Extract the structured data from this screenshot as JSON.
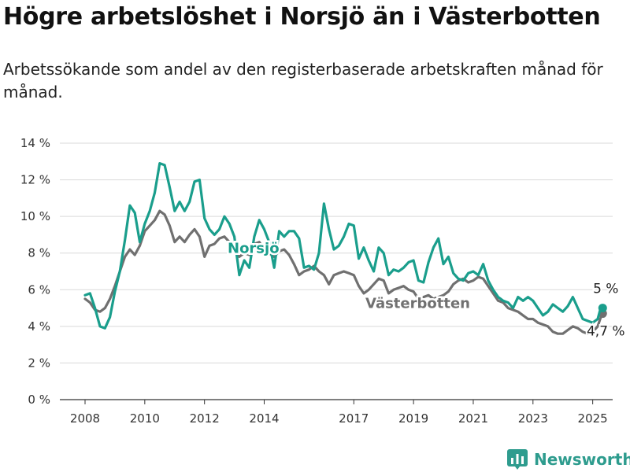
{
  "header": {
    "title": "Högre arbetslöshet i Norsjö än i Västerbotten",
    "subtitle": "Arbetssökande som andel av den registerbaserade arbetskraften månad för månad."
  },
  "brand": {
    "name": "Newsworthy",
    "icon": "bar-chart-logo-icon",
    "color": "#2e9c8e"
  },
  "chart_data": {
    "type": "line",
    "title": "Högre arbetslöshet i Norsjö än i Västerbotten",
    "subtitle": "Arbetssökande som andel av den registerbaserade arbetskraften månad för månad.",
    "xlabel": "",
    "ylabel": "",
    "x_ticks": [
      "2008",
      "2010",
      "2012",
      "2014",
      "2017",
      "2019",
      "2021",
      "2023",
      "2025"
    ],
    "y_ticks": [
      "0 %",
      "2 %",
      "4 %",
      "6 %",
      "8 %",
      "10 %",
      "12 %",
      "14 %"
    ],
    "ylim": [
      0,
      14
    ],
    "xlim": [
      "2007-07",
      "2025-12"
    ],
    "grid": "horizontal",
    "legend": "direct labels on lines",
    "series": [
      {
        "name": "Norsjö",
        "color": "#1a9e8c",
        "end_label": "5 %",
        "points": [
          [
            "2008-01",
            5.7
          ],
          [
            "2008-03",
            5.8
          ],
          [
            "2008-05",
            5.0
          ],
          [
            "2008-07",
            4.0
          ],
          [
            "2008-09",
            3.9
          ],
          [
            "2008-11",
            4.5
          ],
          [
            "2009-01",
            5.9
          ],
          [
            "2009-03",
            7.0
          ],
          [
            "2009-05",
            8.7
          ],
          [
            "2009-07",
            10.6
          ],
          [
            "2009-09",
            10.2
          ],
          [
            "2009-11",
            8.6
          ],
          [
            "2010-01",
            9.6
          ],
          [
            "2010-03",
            10.3
          ],
          [
            "2010-05",
            11.3
          ],
          [
            "2010-07",
            12.9
          ],
          [
            "2010-09",
            12.8
          ],
          [
            "2010-11",
            11.6
          ],
          [
            "2011-01",
            10.3
          ],
          [
            "2011-03",
            10.8
          ],
          [
            "2011-05",
            10.3
          ],
          [
            "2011-07",
            10.8
          ],
          [
            "2011-09",
            11.9
          ],
          [
            "2011-11",
            12.0
          ],
          [
            "2012-01",
            9.9
          ],
          [
            "2012-03",
            9.3
          ],
          [
            "2012-05",
            9.0
          ],
          [
            "2012-07",
            9.3
          ],
          [
            "2012-09",
            10.0
          ],
          [
            "2012-11",
            9.6
          ],
          [
            "2013-01",
            8.9
          ],
          [
            "2013-03",
            6.8
          ],
          [
            "2013-05",
            7.6
          ],
          [
            "2013-07",
            7.2
          ],
          [
            "2013-09",
            8.9
          ],
          [
            "2013-11",
            9.8
          ],
          [
            "2014-01",
            9.3
          ],
          [
            "2014-03",
            8.6
          ],
          [
            "2014-05",
            7.2
          ],
          [
            "2014-07",
            9.2
          ],
          [
            "2014-09",
            8.9
          ],
          [
            "2014-11",
            9.2
          ],
          [
            "2015-01",
            9.2
          ],
          [
            "2015-03",
            8.8
          ],
          [
            "2015-05",
            7.2
          ],
          [
            "2015-07",
            7.3
          ],
          [
            "2015-09",
            7.1
          ],
          [
            "2015-11",
            8.0
          ],
          [
            "2016-01",
            10.7
          ],
          [
            "2016-03",
            9.3
          ],
          [
            "2016-05",
            8.2
          ],
          [
            "2016-07",
            8.4
          ],
          [
            "2016-09",
            8.9
          ],
          [
            "2016-11",
            9.6
          ],
          [
            "2017-01",
            9.5
          ],
          [
            "2017-03",
            7.7
          ],
          [
            "2017-05",
            8.3
          ],
          [
            "2017-07",
            7.6
          ],
          [
            "2017-09",
            7.0
          ],
          [
            "2017-11",
            8.3
          ],
          [
            "2018-01",
            8.0
          ],
          [
            "2018-03",
            6.8
          ],
          [
            "2018-05",
            7.1
          ],
          [
            "2018-07",
            7.0
          ],
          [
            "2018-09",
            7.2
          ],
          [
            "2018-11",
            7.5
          ],
          [
            "2019-01",
            7.6
          ],
          [
            "2019-03",
            6.5
          ],
          [
            "2019-05",
            6.4
          ],
          [
            "2019-07",
            7.5
          ],
          [
            "2019-09",
            8.3
          ],
          [
            "2019-11",
            8.8
          ],
          [
            "2020-01",
            7.4
          ],
          [
            "2020-03",
            7.8
          ],
          [
            "2020-05",
            6.9
          ],
          [
            "2020-07",
            6.6
          ],
          [
            "2020-09",
            6.5
          ],
          [
            "2020-11",
            6.9
          ],
          [
            "2021-01",
            7.0
          ],
          [
            "2021-03",
            6.8
          ],
          [
            "2021-05",
            7.4
          ],
          [
            "2021-07",
            6.5
          ],
          [
            "2021-09",
            6.0
          ],
          [
            "2021-11",
            5.6
          ],
          [
            "2022-01",
            5.4
          ],
          [
            "2022-03",
            5.3
          ],
          [
            "2022-05",
            5.0
          ],
          [
            "2022-07",
            5.6
          ],
          [
            "2022-09",
            5.4
          ],
          [
            "2022-11",
            5.6
          ],
          [
            "2023-01",
            5.4
          ],
          [
            "2023-03",
            5.0
          ],
          [
            "2023-05",
            4.6
          ],
          [
            "2023-07",
            4.8
          ],
          [
            "2023-09",
            5.2
          ],
          [
            "2023-11",
            5.0
          ],
          [
            "2024-01",
            4.8
          ],
          [
            "2024-03",
            5.1
          ],
          [
            "2024-05",
            5.6
          ],
          [
            "2024-07",
            5.0
          ],
          [
            "2024-09",
            4.4
          ],
          [
            "2024-11",
            4.3
          ],
          [
            "2025-01",
            4.2
          ],
          [
            "2025-03",
            4.4
          ],
          [
            "2025-04",
            4.9
          ],
          [
            "2025-05",
            5.0
          ]
        ]
      },
      {
        "name": "Västerbotten",
        "color": "#707070",
        "end_label": "4,7 %",
        "points": [
          [
            "2008-01",
            5.5
          ],
          [
            "2008-03",
            5.3
          ],
          [
            "2008-05",
            4.9
          ],
          [
            "2008-07",
            4.8
          ],
          [
            "2008-09",
            5.0
          ],
          [
            "2008-11",
            5.5
          ],
          [
            "2009-01",
            6.2
          ],
          [
            "2009-03",
            7.0
          ],
          [
            "2009-05",
            7.8
          ],
          [
            "2009-07",
            8.2
          ],
          [
            "2009-09",
            7.9
          ],
          [
            "2009-11",
            8.4
          ],
          [
            "2010-01",
            9.2
          ],
          [
            "2010-03",
            9.5
          ],
          [
            "2010-05",
            9.8
          ],
          [
            "2010-07",
            10.3
          ],
          [
            "2010-09",
            10.1
          ],
          [
            "2010-11",
            9.5
          ],
          [
            "2011-01",
            8.6
          ],
          [
            "2011-03",
            8.9
          ],
          [
            "2011-05",
            8.6
          ],
          [
            "2011-07",
            9.0
          ],
          [
            "2011-09",
            9.3
          ],
          [
            "2011-11",
            8.9
          ],
          [
            "2012-01",
            7.8
          ],
          [
            "2012-03",
            8.4
          ],
          [
            "2012-05",
            8.5
          ],
          [
            "2012-07",
            8.8
          ],
          [
            "2012-09",
            8.9
          ],
          [
            "2012-11",
            8.6
          ],
          [
            "2013-01",
            8.1
          ],
          [
            "2013-03",
            7.8
          ],
          [
            "2013-05",
            8.0
          ],
          [
            "2013-07",
            7.9
          ],
          [
            "2013-09",
            8.5
          ],
          [
            "2013-11",
            8.6
          ],
          [
            "2014-01",
            8.2
          ],
          [
            "2014-03",
            8.0
          ],
          [
            "2014-05",
            7.8
          ],
          [
            "2014-07",
            8.1
          ],
          [
            "2014-09",
            8.2
          ],
          [
            "2014-11",
            7.9
          ],
          [
            "2015-01",
            7.4
          ],
          [
            "2015-03",
            6.8
          ],
          [
            "2015-05",
            7.0
          ],
          [
            "2015-07",
            7.1
          ],
          [
            "2015-09",
            7.3
          ],
          [
            "2015-11",
            7.0
          ],
          [
            "2016-01",
            6.8
          ],
          [
            "2016-03",
            6.3
          ],
          [
            "2016-05",
            6.8
          ],
          [
            "2016-07",
            6.9
          ],
          [
            "2016-09",
            7.0
          ],
          [
            "2016-11",
            6.9
          ],
          [
            "2017-01",
            6.8
          ],
          [
            "2017-03",
            6.2
          ],
          [
            "2017-05",
            5.8
          ],
          [
            "2017-07",
            6.0
          ],
          [
            "2017-09",
            6.3
          ],
          [
            "2017-11",
            6.6
          ],
          [
            "2018-01",
            6.5
          ],
          [
            "2018-03",
            5.8
          ],
          [
            "2018-05",
            6.0
          ],
          [
            "2018-07",
            6.1
          ],
          [
            "2018-09",
            6.2
          ],
          [
            "2018-11",
            6.0
          ],
          [
            "2019-01",
            5.9
          ],
          [
            "2019-03",
            5.5
          ],
          [
            "2019-05",
            5.6
          ],
          [
            "2019-07",
            5.7
          ],
          [
            "2019-09",
            5.5
          ],
          [
            "2019-11",
            5.6
          ],
          [
            "2020-01",
            5.7
          ],
          [
            "2020-03",
            5.9
          ],
          [
            "2020-05",
            6.3
          ],
          [
            "2020-07",
            6.5
          ],
          [
            "2020-09",
            6.6
          ],
          [
            "2020-11",
            6.4
          ],
          [
            "2021-01",
            6.5
          ],
          [
            "2021-03",
            6.7
          ],
          [
            "2021-05",
            6.6
          ],
          [
            "2021-07",
            6.2
          ],
          [
            "2021-09",
            5.8
          ],
          [
            "2021-11",
            5.4
          ],
          [
            "2022-01",
            5.3
          ],
          [
            "2022-03",
            5.0
          ],
          [
            "2022-05",
            4.9
          ],
          [
            "2022-07",
            4.8
          ],
          [
            "2022-09",
            4.6
          ],
          [
            "2022-11",
            4.4
          ],
          [
            "2023-01",
            4.4
          ],
          [
            "2023-03",
            4.2
          ],
          [
            "2023-05",
            4.1
          ],
          [
            "2023-07",
            4.0
          ],
          [
            "2023-09",
            3.7
          ],
          [
            "2023-11",
            3.6
          ],
          [
            "2024-01",
            3.6
          ],
          [
            "2024-03",
            3.8
          ],
          [
            "2024-05",
            4.0
          ],
          [
            "2024-07",
            3.9
          ],
          [
            "2024-09",
            3.7
          ],
          [
            "2024-11",
            3.6
          ],
          [
            "2025-01",
            3.7
          ],
          [
            "2025-03",
            4.0
          ],
          [
            "2025-04",
            4.4
          ],
          [
            "2025-05",
            4.7
          ]
        ]
      }
    ]
  }
}
